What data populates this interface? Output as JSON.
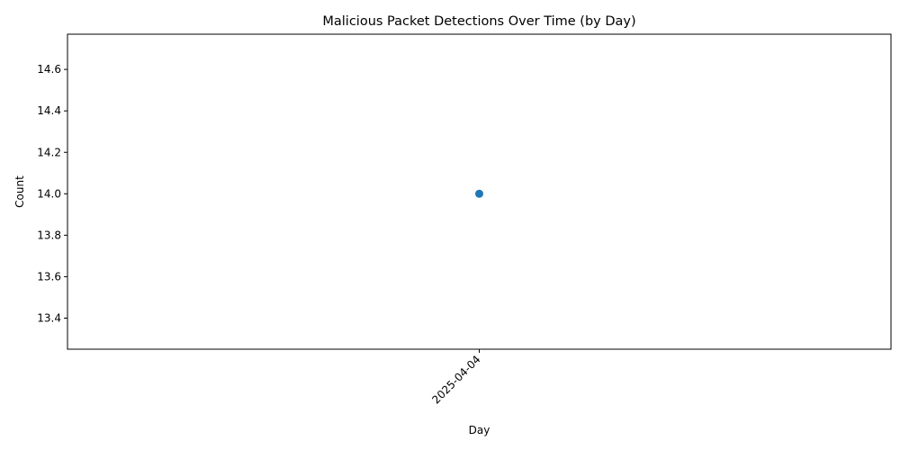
{
  "chart_data": {
    "type": "line",
    "title": "Malicious Packet Detections Over Time (by Day)",
    "xlabel": "Day",
    "ylabel": "Count",
    "categories": [
      "2025-04-04"
    ],
    "series": [
      {
        "values": [
          14
        ],
        "color": "#1f77b4"
      }
    ],
    "ylim": [
      13.25,
      14.77
    ],
    "yticks": [
      13.4,
      13.6,
      13.8,
      14.0,
      14.2,
      14.4,
      14.6
    ],
    "ytick_labels": [
      "13.4",
      "13.6",
      "13.8",
      "14.0",
      "14.2",
      "14.4",
      "14.6"
    ],
    "xtick_rotation": "45 degrees",
    "grid": false,
    "legend": "none",
    "marker": "circle"
  }
}
